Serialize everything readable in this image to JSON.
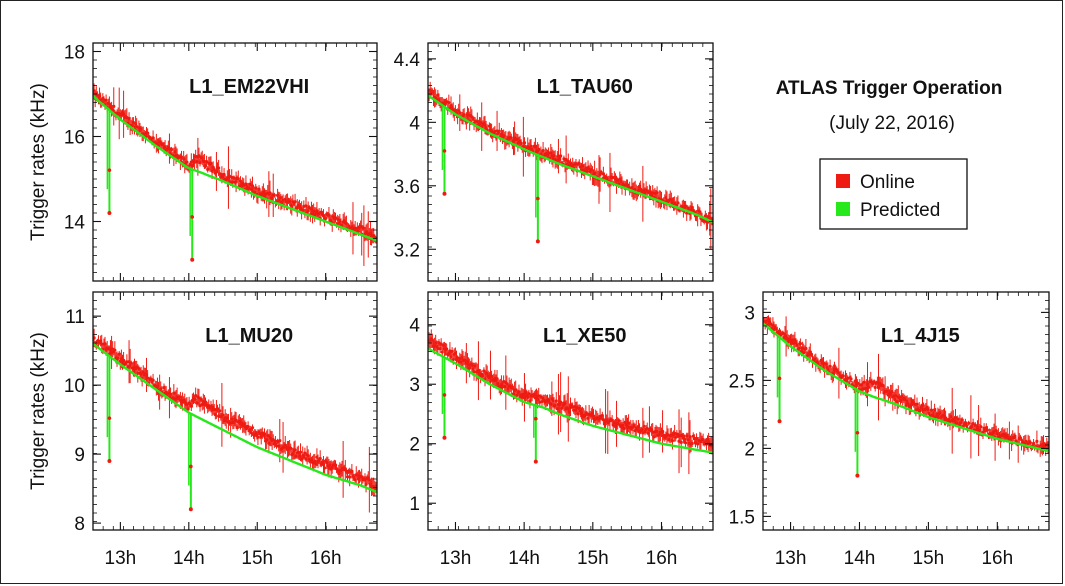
{
  "header": {
    "title": "ATLAS Trigger Operation",
    "subtitle": "(July 22, 2016)"
  },
  "legend": {
    "items": [
      {
        "label": "Online",
        "color": "#ee1b12"
      },
      {
        "label": "Predicted",
        "color": "#27e81a"
      }
    ]
  },
  "colors": {
    "online": "#ee1b12",
    "predicted": "#27e81a",
    "frame": "#222222"
  },
  "chart_data": [
    {
      "type": "line",
      "title": "L1_EM22VHI",
      "ylabel": "Trigger rates (kHz)",
      "xlabel": "",
      "x_tick_labels": [
        "13h",
        "14h",
        "15h",
        "16h"
      ],
      "xlim": [
        12.6,
        16.75
      ],
      "ylim": [
        12.6,
        18.2
      ],
      "yticks": [
        14,
        16,
        18
      ],
      "ytick_labels": [
        "14",
        "16",
        "18"
      ],
      "x_tick_values": [
        13,
        14,
        15,
        16
      ],
      "series": [
        {
          "name": "Online",
          "x": [
            12.6,
            13.0,
            13.5,
            14.0,
            14.1,
            14.5,
            15.0,
            15.5,
            16.0,
            16.5,
            16.75
          ],
          "y": [
            17.0,
            16.5,
            15.9,
            15.3,
            15.5,
            15.1,
            14.7,
            14.4,
            14.1,
            13.8,
            13.6
          ]
        },
        {
          "name": "Predicted",
          "x": [
            12.6,
            13.0,
            13.5,
            14.0,
            14.1,
            14.5,
            15.0,
            15.5,
            16.0,
            16.5,
            16.75
          ],
          "y": [
            16.95,
            16.4,
            15.8,
            15.25,
            15.2,
            14.95,
            14.6,
            14.3,
            14.0,
            13.7,
            13.55
          ]
        }
      ],
      "dips": [
        {
          "x": 12.84,
          "y": 14.2
        },
        {
          "x": 14.05,
          "y": 13.1
        }
      ]
    },
    {
      "type": "line",
      "title": "L1_TAU60",
      "ylabel": "",
      "xlabel": "",
      "x_tick_labels": [
        "13h",
        "14h",
        "15h",
        "16h"
      ],
      "xlim": [
        12.6,
        16.75
      ],
      "ylim": [
        3.0,
        4.5
      ],
      "yticks": [
        3.2,
        3.6,
        4.0,
        4.4
      ],
      "ytick_labels": [
        "3.2",
        "3.6",
        "4",
        "4.4"
      ],
      "x_tick_values": [
        13,
        14,
        15,
        16
      ],
      "series": [
        {
          "name": "Online",
          "x": [
            12.6,
            13.0,
            13.5,
            14.0,
            14.5,
            15.0,
            15.5,
            16.0,
            16.5,
            16.75
          ],
          "y": [
            4.2,
            4.07,
            3.95,
            3.85,
            3.77,
            3.68,
            3.6,
            3.52,
            3.43,
            3.37
          ]
        },
        {
          "name": "Predicted",
          "x": [
            12.6,
            13.0,
            13.5,
            14.0,
            14.5,
            15.0,
            15.5,
            16.0,
            16.5,
            16.75
          ],
          "y": [
            4.17,
            4.05,
            3.93,
            3.83,
            3.74,
            3.66,
            3.58,
            3.5,
            3.42,
            3.37
          ]
        }
      ],
      "dips": [
        {
          "x": 12.84,
          "y": 3.55
        },
        {
          "x": 14.2,
          "y": 3.25
        }
      ]
    },
    {
      "type": "line",
      "title": "L1_MU20",
      "ylabel": "Trigger rates (kHz)",
      "xlabel": "",
      "x_tick_labels": [
        "13h",
        "14h",
        "15h",
        "16h"
      ],
      "xlim": [
        12.6,
        16.75
      ],
      "ylim": [
        7.9,
        11.35
      ],
      "yticks": [
        8,
        9,
        10,
        11
      ],
      "ytick_labels": [
        "8",
        "9",
        "10",
        "11"
      ],
      "x_tick_values": [
        13,
        14,
        15,
        16
      ],
      "series": [
        {
          "name": "Online",
          "x": [
            12.6,
            13.0,
            13.5,
            14.0,
            14.1,
            14.5,
            15.0,
            15.5,
            16.0,
            16.5,
            16.75
          ],
          "y": [
            10.65,
            10.4,
            10.0,
            9.7,
            9.8,
            9.55,
            9.3,
            9.05,
            8.85,
            8.65,
            8.55
          ]
        },
        {
          "name": "Predicted",
          "x": [
            12.6,
            13.0,
            13.5,
            14.0,
            14.1,
            14.5,
            15.0,
            15.5,
            16.0,
            16.5,
            16.75
          ],
          "y": [
            10.6,
            10.3,
            9.95,
            9.6,
            9.55,
            9.35,
            9.1,
            8.9,
            8.7,
            8.55,
            8.45
          ]
        }
      ],
      "dips": [
        {
          "x": 12.84,
          "y": 8.9
        },
        {
          "x": 14.03,
          "y": 8.2
        }
      ]
    },
    {
      "type": "line",
      "title": "L1_XE50",
      "ylabel": "",
      "xlabel": "",
      "x_tick_labels": [
        "13h",
        "14h",
        "15h",
        "16h"
      ],
      "xlim": [
        12.6,
        16.75
      ],
      "ylim": [
        0.55,
        4.55
      ],
      "yticks": [
        1,
        2,
        3,
        4
      ],
      "ytick_labels": [
        "1",
        "2",
        "3",
        "4"
      ],
      "x_tick_values": [
        13,
        14,
        15,
        16
      ],
      "series": [
        {
          "name": "Online",
          "x": [
            12.6,
            13.0,
            13.5,
            14.0,
            14.3,
            14.5,
            15.0,
            15.5,
            16.0,
            16.5,
            16.75
          ],
          "y": [
            3.75,
            3.45,
            3.1,
            2.8,
            2.75,
            2.65,
            2.45,
            2.3,
            2.15,
            2.05,
            2.0
          ]
        },
        {
          "name": "Predicted",
          "x": [
            12.6,
            13.0,
            13.5,
            14.0,
            14.3,
            14.5,
            15.0,
            15.5,
            16.0,
            16.5,
            16.75
          ],
          "y": [
            3.6,
            3.35,
            3.0,
            2.7,
            2.6,
            2.5,
            2.3,
            2.15,
            2.0,
            1.9,
            1.85
          ]
        }
      ],
      "dips": [
        {
          "x": 12.84,
          "y": 2.1
        },
        {
          "x": 14.17,
          "y": 1.7
        }
      ]
    },
    {
      "type": "line",
      "title": "L1_4J15",
      "ylabel": "",
      "xlabel": "",
      "x_tick_labels": [
        "13h",
        "14h",
        "15h",
        "16h"
      ],
      "xlim": [
        12.6,
        16.75
      ],
      "ylim": [
        1.4,
        3.15
      ],
      "yticks": [
        1.5,
        2.0,
        2.5,
        3.0
      ],
      "ytick_labels": [
        "1.5",
        "2",
        "2.5",
        "3"
      ],
      "x_tick_values": [
        13,
        14,
        15,
        16
      ],
      "series": [
        {
          "name": "Online",
          "x": [
            12.6,
            13.0,
            13.5,
            14.0,
            14.2,
            14.5,
            15.0,
            15.5,
            16.0,
            16.5,
            16.75
          ],
          "y": [
            2.95,
            2.8,
            2.6,
            2.45,
            2.48,
            2.38,
            2.27,
            2.18,
            2.1,
            2.03,
            2.0
          ]
        },
        {
          "name": "Predicted",
          "x": [
            12.6,
            13.0,
            13.5,
            14.0,
            14.2,
            14.5,
            15.0,
            15.5,
            16.0,
            16.5,
            16.75
          ],
          "y": [
            2.92,
            2.75,
            2.57,
            2.42,
            2.38,
            2.33,
            2.23,
            2.15,
            2.07,
            2.01,
            1.98
          ]
        }
      ],
      "dips": [
        {
          "x": 12.84,
          "y": 2.2
        },
        {
          "x": 13.97,
          "y": 1.8
        }
      ]
    }
  ]
}
